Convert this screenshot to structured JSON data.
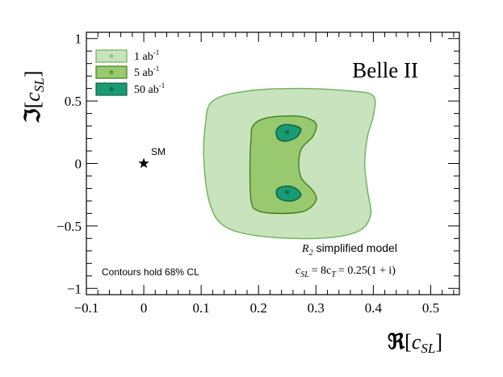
{
  "chart_data": {
    "type": "contour",
    "experiment_label": "Belle II",
    "xlabel_symbol": "ℜ",
    "xlabel_var": "c",
    "xlabel_sub": "SL",
    "ylabel_symbol": "ℑ",
    "ylabel_var": "c",
    "ylabel_sub": "SL",
    "xlim": [
      -0.1,
      0.55
    ],
    "ylim": [
      -1.05,
      1.05
    ],
    "xticks": [
      -0.1,
      0,
      0.1,
      0.2,
      0.3,
      0.4,
      0.5
    ],
    "xtick_labels": [
      "−0.1",
      "0",
      "0.1",
      "0.2",
      "0.3",
      "0.4",
      "0.5"
    ],
    "yticks": [
      -1,
      -0.5,
      0,
      0.5,
      1
    ],
    "ytick_labels": [
      "−1",
      "−0.5",
      "0",
      "0.5",
      "1"
    ],
    "legend": [
      {
        "label": "1 ab",
        "sup": "-1",
        "fill": "#c8e3bd",
        "edge": "#6bb25a",
        "dot": "#8fcb83"
      },
      {
        "label": "5 ab",
        "sup": "-1",
        "fill": "#99c96f",
        "edge": "#3f7f1e",
        "dot": "#5d9e33"
      },
      {
        "label": "50 ab",
        "sup": "-1",
        "fill": "#1a9a73",
        "edge": "#0a5f46",
        "dot": "#0f7050"
      }
    ],
    "sm_point": {
      "label": "SM",
      "x": 0,
      "y": 0
    },
    "best_fit_points": [
      {
        "x": 0.25,
        "y": 0.25
      },
      {
        "x": 0.25,
        "y": -0.23
      }
    ],
    "contours": [
      {
        "name": "1 ab-1",
        "points": [
          [
            0.12,
            0.5
          ],
          [
            0.18,
            0.58
          ],
          [
            0.27,
            0.6
          ],
          [
            0.36,
            0.58
          ],
          [
            0.4,
            0.54
          ],
          [
            0.4,
            0.38
          ],
          [
            0.39,
            0.22
          ],
          [
            0.385,
            0.0
          ],
          [
            0.39,
            -0.22
          ],
          [
            0.395,
            -0.42
          ],
          [
            0.37,
            -0.55
          ],
          [
            0.3,
            -0.6
          ],
          [
            0.2,
            -0.58
          ],
          [
            0.14,
            -0.5
          ],
          [
            0.115,
            -0.32
          ],
          [
            0.105,
            0.0
          ],
          [
            0.107,
            0.3
          ]
        ]
      },
      {
        "name": "5 ab-1",
        "points": [
          [
            0.19,
            0.3
          ],
          [
            0.21,
            0.36
          ],
          [
            0.25,
            0.38
          ],
          [
            0.28,
            0.37
          ],
          [
            0.3,
            0.32
          ],
          [
            0.295,
            0.22
          ],
          [
            0.275,
            0.12
          ],
          [
            0.27,
            0.0
          ],
          [
            0.275,
            -0.12
          ],
          [
            0.295,
            -0.22
          ],
          [
            0.3,
            -0.3
          ],
          [
            0.28,
            -0.38
          ],
          [
            0.24,
            -0.4
          ],
          [
            0.2,
            -0.38
          ],
          [
            0.187,
            -0.3
          ],
          [
            0.185,
            0.0
          ],
          [
            0.187,
            0.2
          ]
        ]
      },
      {
        "name": "50 ab-1 upper",
        "points": [
          [
            0.233,
            0.28
          ],
          [
            0.245,
            0.31
          ],
          [
            0.265,
            0.3
          ],
          [
            0.274,
            0.27
          ],
          [
            0.266,
            0.21
          ],
          [
            0.25,
            0.18
          ],
          [
            0.236,
            0.19
          ],
          [
            0.231,
            0.23
          ]
        ]
      },
      {
        "name": "50 ab-1 lower",
        "points": [
          [
            0.234,
            -0.2
          ],
          [
            0.25,
            -0.18
          ],
          [
            0.265,
            -0.2
          ],
          [
            0.274,
            -0.25
          ],
          [
            0.265,
            -0.29
          ],
          [
            0.25,
            -0.3
          ],
          [
            0.236,
            -0.28
          ],
          [
            0.231,
            -0.24
          ]
        ]
      }
    ],
    "annotation_model_sym": "R",
    "annotation_model_sub": "2",
    "annotation_model_text": "simplified model",
    "annotation_relation": "= 8c",
    "annotation_relation_sub": "T",
    "annotation_relation_tail": "= 0.25(1 + i)",
    "annotation_cl": "Contours hold 68% CL"
  }
}
